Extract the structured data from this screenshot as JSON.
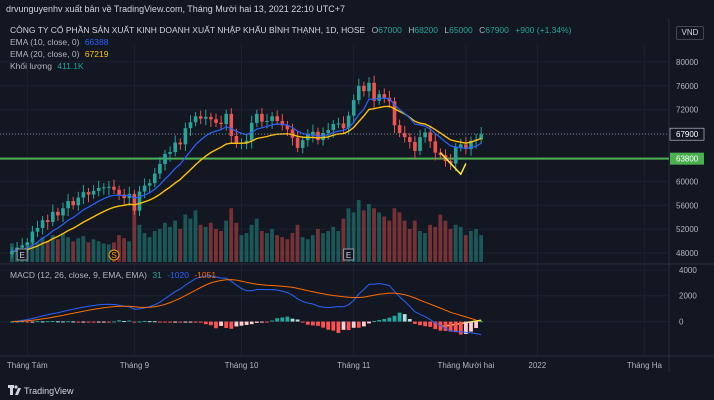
{
  "header": {
    "publisher_line": "drvunguyenhv xuất bản về TradingView.com, Tháng Mười hai 13, 2021 22:10 UTC+7"
  },
  "legend": {
    "symbol": "CÔNG TY CỔ PHẦN SẢN XUẤT KINH DOANH XUẤT NHẬP KHẨU BÌNH THẠNH, 1D, HOSE",
    "o_label": "O",
    "o_value": "67000",
    "h_label": "H",
    "h_value": "68200",
    "l_label": "L",
    "l_value": "65000",
    "c_label": "C",
    "c_value": "67900",
    "change": "+900 (+1.34%)",
    "ema10_label": "EMA (10, close, 0)",
    "ema10_value": "66388",
    "ema20_label": "EMA (20, close, 0)",
    "ema20_value": "67219",
    "volume_label": "Khối lượng",
    "volume_value": "411.1K",
    "macd_label": "MACD (12, 26, close, 9, EMA, EMA)",
    "macd_hist": "31",
    "macd_line": "-1020",
    "macd_signal": "-1051"
  },
  "currency": "VND",
  "footer": {
    "brand": "TradingView"
  },
  "colors": {
    "up": "#26a69a",
    "down": "#ef5350",
    "ema10": "#2962ff",
    "ema20": "#ffc107",
    "support": "#4caf50",
    "macd": "#2962ff",
    "signal": "#ff6d00",
    "trendline": "#ffeb3b"
  },
  "chart_data": {
    "type": "candlestick",
    "price_axis": {
      "ticks": [
        "80000",
        "76000",
        "72000",
        "68000",
        "64000",
        "60000",
        "56000",
        "52000",
        "48000"
      ],
      "range": [
        46500,
        83000
      ]
    },
    "price_labels": [
      {
        "text": "67900",
        "value": 67900,
        "style": "current"
      },
      {
        "text": "63800",
        "value": 63800,
        "style": "support"
      }
    ],
    "support_level": 63800,
    "macd_axis": {
      "ticks": [
        "4000",
        "2000",
        "0"
      ],
      "range": [
        -2200,
        4300
      ]
    },
    "time_axis": [
      {
        "label": "Tháng Tám",
        "index": 3
      },
      {
        "label": "Tháng 9",
        "index": 24
      },
      {
        "label": "Tháng 10",
        "index": 45
      },
      {
        "label": "Tháng 11",
        "index": 67
      },
      {
        "label": "Tháng Mười hai",
        "index": 89
      },
      {
        "label": "2022",
        "index": 103
      },
      {
        "label": "Tháng Ha",
        "index": 124
      }
    ],
    "event_markers": [
      {
        "text": "S",
        "index": 20
      },
      {
        "text": "E",
        "index": 2
      },
      {
        "text": "E",
        "index": 66
      }
    ],
    "close": [
      48300,
      48900,
      49300,
      49800,
      51600,
      52200,
      53500,
      53200,
      54900,
      54300,
      55500,
      56700,
      56000,
      57300,
      58200,
      57800,
      58400,
      58900,
      59000,
      59100,
      58600,
      57800,
      57200,
      57900,
      55100,
      58300,
      59300,
      59700,
      61300,
      62900,
      64600,
      64900,
      66500,
      66200,
      68900,
      69900,
      70900,
      70500,
      70800,
      70400,
      69800,
      69600,
      71300,
      67600,
      66300,
      66500,
      66800,
      69800,
      71300,
      70000,
      70100,
      70900,
      70100,
      69400,
      68700,
      67300,
      65600,
      66900,
      67800,
      68300,
      66900,
      68100,
      68600,
      69600,
      69700,
      68900,
      71000,
      73600,
      76000,
      75100,
      76500,
      73500,
      74600,
      74000,
      73400,
      69400,
      68100,
      67400,
      66600,
      65100,
      67400,
      68200,
      66700,
      64800,
      64400,
      63400,
      63000,
      65700,
      66200,
      65400,
      66800,
      67000,
      67900
    ],
    "ema10": [
      48300,
      48409,
      48571,
      48794,
      49304,
      49830,
      50498,
      51008,
      51715,
      52185,
      52788,
      53499,
      53953,
      54562,
      55223,
      55692,
      56185,
      56679,
      57101,
      57462,
      57669,
      57693,
      57603,
      57658,
      57193,
      57394,
      57740,
      58097,
      58680,
      59448,
      60384,
      61205,
      62168,
      62898,
      64000,
      65073,
      66132,
      66926,
      67630,
      68134,
      68437,
      68649,
      69127,
      68849,
      68386,
      68043,
      67817,
      68178,
      68745,
      68973,
      69178,
      69490,
      69601,
      69564,
      69407,
      69024,
      68402,
      68039,
      67814,
      67720,
      67571,
      67667,
      67837,
      68157,
      68437,
      68521,
      68972,
      69905,
      71195,
      72088,
      73799,
      73744,
      73900,
      73918,
      73824,
      72838,
      72020,
      71362,
      70570,
      69585,
      69460,
      69231,
      68744,
      67999,
      67344,
      66611,
      65955,
      65735,
      65637,
      65506,
      65681,
      65874,
      66388
    ],
    "ema20": [
      48300,
      48357,
      48447,
      48576,
      48864,
      49181,
      49593,
      49936,
      50409,
      50780,
      51230,
      51751,
      52160,
      52649,
      53178,
      53618,
      54072,
      54532,
      54959,
      55353,
      55662,
      55866,
      55997,
      56180,
      56076,
      56288,
      56575,
      56873,
      57295,
      57829,
      58475,
      59038,
      59749,
      60334,
      61147,
      61961,
      62812,
      63544,
      64235,
      64826,
      65300,
      65724,
      66256,
      66384,
      66376,
      66388,
      66428,
      66749,
      67182,
      67351,
      67517,
      67763,
      67891,
      67939,
      67965,
      67835,
      67546,
      67400,
      67361,
      67374,
      67252,
      67333,
      67450,
      67751,
      67933,
      68006,
      68386,
      69025,
      69999,
      70961,
      72055,
      72167,
      72367,
      72519,
      72570,
      72168,
      71706,
      71274,
      70704,
      70064,
      69743,
      69591,
      69193,
      68659,
      68101,
      67515,
      66943,
      66732,
      66557,
      66384,
      66567,
      66856,
      67219
    ],
    "volume": [
      90,
      70,
      60,
      85,
      110,
      95,
      120,
      100,
      130,
      110,
      140,
      120,
      100,
      115,
      125,
      95,
      110,
      100,
      90,
      85,
      95,
      130,
      115,
      100,
      260,
      180,
      140,
      120,
      150,
      160,
      190,
      170,
      200,
      160,
      230,
      210,
      250,
      180,
      170,
      190,
      160,
      150,
      200,
      260,
      190,
      130,
      140,
      180,
      210,
      150,
      140,
      160,
      130,
      120,
      110,
      140,
      180,
      120,
      110,
      130,
      160,
      140,
      150,
      170,
      150,
      210,
      260,
      240,
      300,
      250,
      280,
      260,
      240,
      220,
      200,
      260,
      240,
      200,
      160,
      200,
      150,
      140,
      180,
      170,
      230,
      200,
      160,
      180,
      170,
      130,
      150,
      160,
      130
    ],
    "macd_histogram": [
      0,
      0,
      20,
      -20,
      -10,
      30,
      10,
      30,
      40,
      20,
      10,
      25,
      10,
      -15,
      -10,
      -40,
      -50,
      -40,
      -30,
      -45,
      10,
      100,
      40,
      80,
      -20,
      5,
      50,
      30,
      25,
      -20,
      -30,
      -40,
      -20,
      -40,
      -30,
      -10,
      -50,
      -80,
      -200,
      -280,
      -520,
      -340,
      -500,
      -560,
      -380,
      -320,
      -260,
      -200,
      -100,
      -40,
      -40,
      80,
      260,
      320,
      380,
      220,
      160,
      -60,
      -240,
      -300,
      -330,
      -470,
      -630,
      -700,
      -880,
      -640,
      -660,
      -480,
      -480,
      -370,
      -140,
      40,
      120,
      200,
      300,
      450,
      690,
      580,
      200,
      -180,
      -280,
      -360,
      -410,
      -580,
      -700,
      -720,
      -780,
      -820,
      -1000,
      -960,
      -780,
      -500,
      31
    ],
    "macd_line": [
      0,
      40,
      90,
      150,
      240,
      330,
      440,
      520,
      620,
      690,
      780,
      880,
      960,
      1040,
      1120,
      1180,
      1240,
      1300,
      1330,
      1340,
      1320,
      1260,
      1180,
      1140,
      960,
      980,
      1060,
      1160,
      1300,
      1500,
      1780,
      2040,
      2320,
      2520,
      2820,
      3080,
      3320,
      3450,
      3520,
      3530,
      3460,
      3360,
      3360,
      3120,
      2820,
      2560,
      2380,
      2380,
      2480,
      2480,
      2460,
      2480,
      2440,
      2360,
      2240,
      2040,
      1760,
      1560,
      1440,
      1360,
      1200,
      1120,
      1080,
      1120,
      1160,
      1140,
      1300,
      1640,
      2140,
      2480,
      2880,
      2900,
      2940,
      2880,
      2780,
      2340,
      1920,
      1560,
      1180,
      760,
      560,
      380,
      160,
      -100,
      -300,
      -520,
      -720,
      -760,
      -780,
      -840,
      -880,
      -920,
      -1020
    ],
    "macd_signal": [
      0,
      10,
      30,
      60,
      100,
      150,
      210,
      270,
      340,
      410,
      480,
      560,
      640,
      720,
      800,
      870,
      940,
      1010,
      1070,
      1120,
      1160,
      1180,
      1190,
      1180,
      1140,
      1110,
      1100,
      1110,
      1150,
      1220,
      1330,
      1470,
      1640,
      1810,
      2010,
      2220,
      2430,
      2640,
      2830,
      2990,
      3100,
      3180,
      3240,
      3250,
      3210,
      3130,
      3040,
      2950,
      2890,
      2850,
      2810,
      2790,
      2760,
      2730,
      2700,
      2650,
      2570,
      2480,
      2390,
      2300,
      2220,
      2150,
      2080,
      2020,
      1970,
      1920,
      1880,
      1860,
      1860,
      1890,
      1970,
      2040,
      2110,
      2160,
      2200,
      2200,
      2160,
      2080,
      1970,
      1820,
      1650,
      1500,
      1350,
      1200,
      1040,
      880,
      720,
      600,
      480,
      360,
      240,
      120,
      -1051
    ]
  }
}
